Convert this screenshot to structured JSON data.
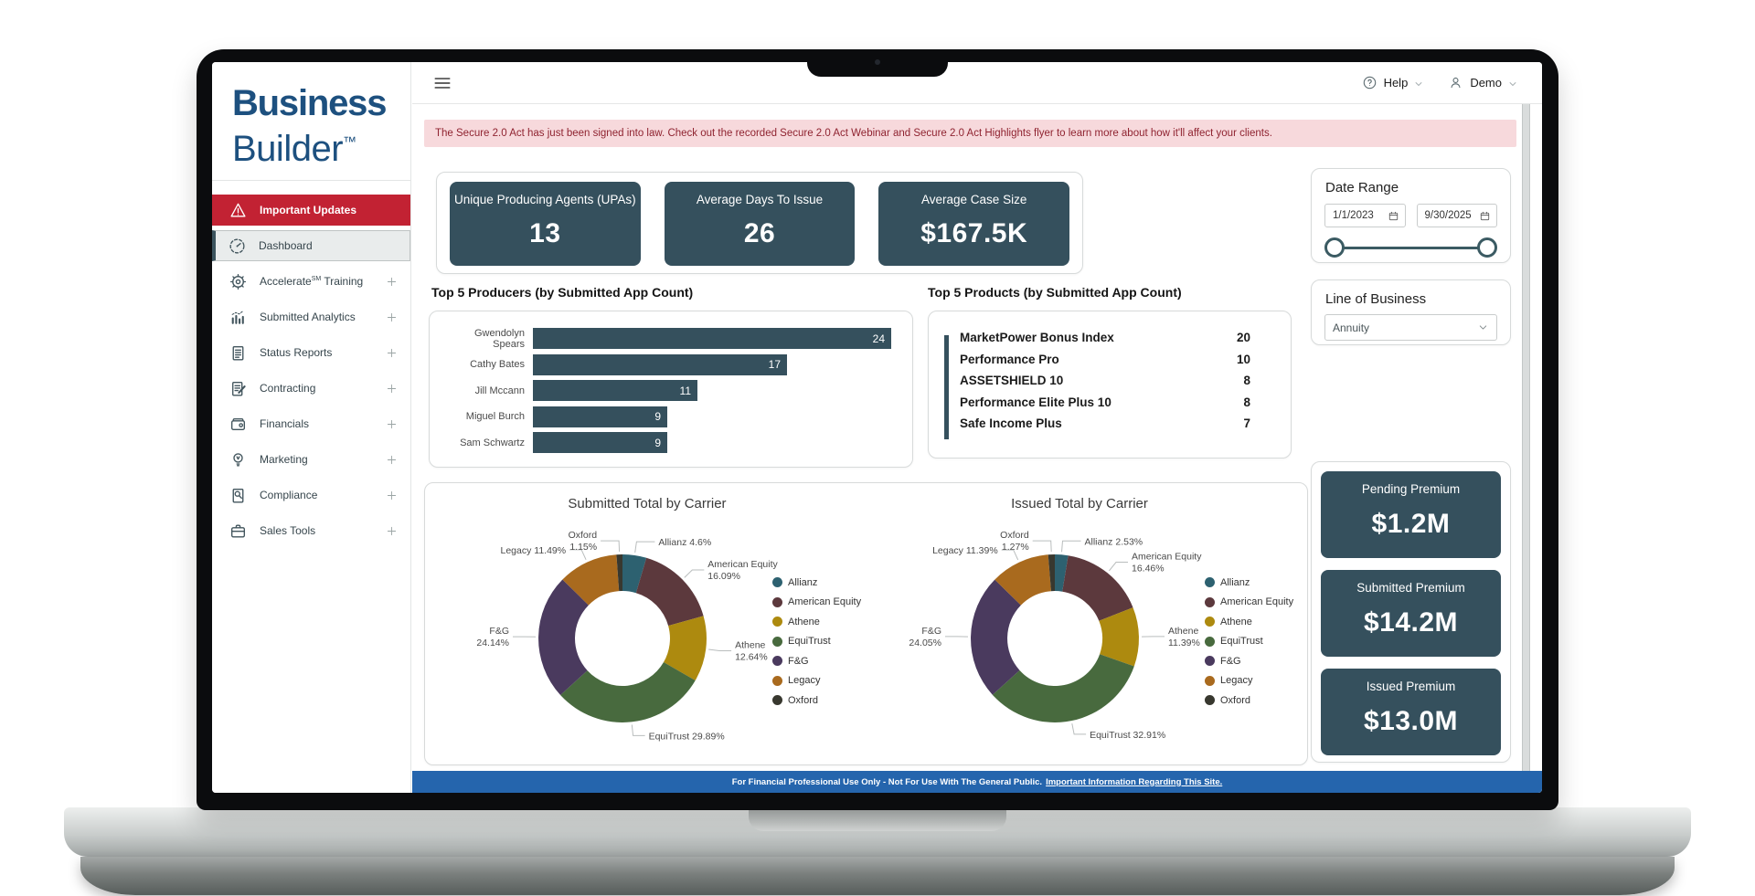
{
  "header": {
    "help_label": "Help",
    "user_label": "Demo",
    "menu_icon": "hamburger",
    "help_icon": "question-circle",
    "user_icon": "person",
    "chevron_icon": "chevron-down"
  },
  "sidebar": {
    "logo": {
      "line1": "Business",
      "line2": "Builder",
      "trademark": "™"
    },
    "items": [
      {
        "label": "Important Updates",
        "icon": "warning-triangle",
        "variant": "alert",
        "expandable": false
      },
      {
        "label": "Dashboard",
        "icon": "gauge",
        "variant": "active",
        "expandable": false
      },
      {
        "label": "Accelerate℠ Training",
        "icon": "gear",
        "variant": "default",
        "expandable": true
      },
      {
        "label": "Submitted Analytics",
        "icon": "chart-bars",
        "variant": "default",
        "expandable": true
      },
      {
        "label": "Status Reports",
        "icon": "document-lines",
        "variant": "default",
        "expandable": true
      },
      {
        "label": "Contracting",
        "icon": "document-pencil",
        "variant": "default",
        "expandable": true
      },
      {
        "label": "Financials",
        "icon": "wallet",
        "variant": "default",
        "expandable": true
      },
      {
        "label": "Marketing",
        "icon": "lightbulb",
        "variant": "default",
        "expandable": true
      },
      {
        "label": "Compliance",
        "icon": "document-magnifier",
        "variant": "default",
        "expandable": true
      },
      {
        "label": "Sales Tools",
        "icon": "briefcase",
        "variant": "default",
        "expandable": true
      }
    ]
  },
  "banner": {
    "text": "The Secure 2.0 Act has just been signed into law. Check out the recorded Secure 2.0 Act Webinar and Secure 2.0 Act Highlights flyer to learn more about how it'll affect your clients."
  },
  "kpis": [
    {
      "label": "Unique Producing Agents (UPAs)",
      "value": "13"
    },
    {
      "label": "Average Days To Issue",
      "value": "26"
    },
    {
      "label": "Average Case Size",
      "value": "$167.5K"
    }
  ],
  "filters": {
    "date_range": {
      "title": "Date Range",
      "start_date": "1/1/2023",
      "end_date": "9/30/2025",
      "calendar_icon": "calendar"
    },
    "line_of_business": {
      "title": "Line of Business",
      "selected": "Annuity",
      "chevron_icon": "chevron-down"
    }
  },
  "premium_cards": [
    {
      "label": "Pending Premium",
      "value": "$1.2M"
    },
    {
      "label": "Submitted Premium",
      "value": "$14.2M"
    },
    {
      "label": "Issued Premium",
      "value": "$13.0M"
    }
  ],
  "footer": {
    "text": "For Financial Professional Use Only - Not For Use With The General Public.",
    "link_text": "Important Information Regarding This Site."
  },
  "colors": {
    "accent_dark": "#35505d",
    "alert_red": "#c22233",
    "logo_blue": "#1d507f",
    "footer_blue": "#2565ad",
    "banner_bg": "#f7d9dc",
    "banner_text": "#8f2330"
  },
  "chart_data": [
    {
      "type": "bar",
      "title": "Top 5 Producers (by Submitted App Count)",
      "orientation": "horizontal",
      "categories": [
        "Gwendolyn Spears",
        "Cathy Bates",
        "Jill Mccann",
        "Miguel Burch",
        "Sam Schwartz"
      ],
      "values": [
        24,
        17,
        11,
        9,
        9
      ],
      "xlim": [
        0,
        24
      ],
      "bar_color": "#35505d",
      "value_labels": true
    },
    {
      "type": "table",
      "title": "Top 5 Products (by Submitted App Count)",
      "rows": [
        [
          "MarketPower Bonus Index",
          "20"
        ],
        [
          "Performance Pro",
          "10"
        ],
        [
          "ASSETSHIELD 10",
          "8"
        ],
        [
          "Performance Elite Plus 10",
          "8"
        ],
        [
          "Safe Income Plus",
          "7"
        ]
      ]
    },
    {
      "type": "pie",
      "donut": true,
      "title": "Submitted Total by Carrier",
      "legend_position": "right",
      "slices": [
        {
          "name": "Allianz",
          "value": 4.6,
          "label": "4.6%",
          "color": "#2d6170",
          "wrap": false
        },
        {
          "name": "American Equity",
          "value": 16.09,
          "label": "16.09%",
          "color": "#5c393d",
          "wrap": true
        },
        {
          "name": "Athene",
          "value": 12.64,
          "label": "12.64%",
          "color": "#ad8a0f",
          "wrap": true
        },
        {
          "name": "EquiTrust",
          "value": 29.89,
          "label": "29.89%",
          "color": "#486a3e",
          "wrap": false
        },
        {
          "name": "F&G",
          "value": 24.14,
          "label": "24.14%",
          "color": "#4a3a5e",
          "wrap": true
        },
        {
          "name": "Legacy",
          "value": 11.49,
          "label": "11.49%",
          "color": "#a96a1e",
          "wrap": false
        },
        {
          "name": "Oxford",
          "value": 1.15,
          "label": "1.15%",
          "color": "#38382f",
          "wrap": true
        }
      ]
    },
    {
      "type": "pie",
      "donut": true,
      "title": "Issued Total by Carrier",
      "legend_position": "right",
      "slices": [
        {
          "name": "Allianz",
          "value": 2.53,
          "label": "2.53%",
          "color": "#2d6170",
          "wrap": false
        },
        {
          "name": "American Equity",
          "value": 16.46,
          "label": "16.46%",
          "color": "#5c393d",
          "wrap": true
        },
        {
          "name": "Athene",
          "value": 11.39,
          "label": "11.39%",
          "color": "#ad8a0f",
          "wrap": true
        },
        {
          "name": "EquiTrust",
          "value": 32.91,
          "label": "32.91%",
          "color": "#486a3e",
          "wrap": false
        },
        {
          "name": "F&G",
          "value": 24.05,
          "label": "24.05%",
          "color": "#4a3a5e",
          "wrap": true
        },
        {
          "name": "Legacy",
          "value": 11.39,
          "label": "11.39%",
          "color": "#a96a1e",
          "wrap": false
        },
        {
          "name": "Oxford",
          "value": 1.27,
          "label": "1.27%",
          "color": "#38382f",
          "wrap": true
        }
      ]
    }
  ]
}
